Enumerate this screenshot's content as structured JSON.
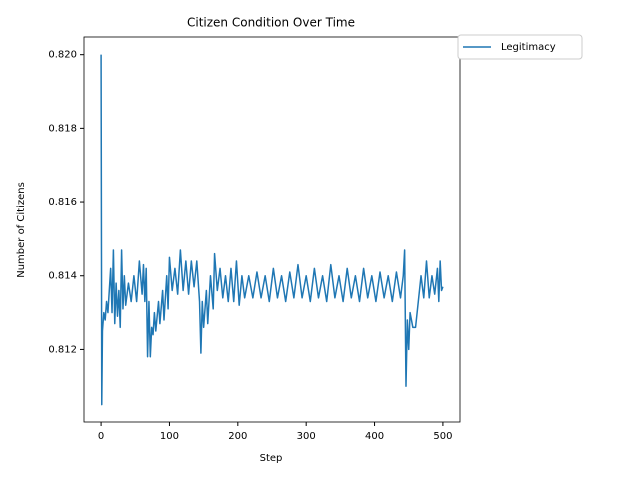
{
  "chart_data": {
    "type": "line",
    "title": "Citizen Condition Over Time",
    "x_label": "Step",
    "y_label": "Number of Citizens",
    "xlim": [
      -25,
      525
    ],
    "xticks": [
      0,
      100,
      200,
      300,
      400,
      500
    ],
    "ylim": [
      0.81003,
      0.82048
    ],
    "yticks": [
      0.812,
      0.814,
      0.816,
      0.818,
      {
        "value": 0.82,
        "label": "0.820"
      }
    ],
    "grid": false,
    "legend": "outside upper right",
    "series": [
      {
        "name": "Legitimacy",
        "color": "#1f77b4",
        "x": [
          0,
          1,
          2,
          4,
          6,
          8,
          10,
          12,
          14,
          16,
          18,
          20,
          22,
          24,
          26,
          28,
          30,
          32,
          34,
          36,
          40,
          44,
          48,
          52,
          56,
          60,
          62,
          64,
          66,
          68,
          70,
          72,
          74,
          76,
          78,
          80,
          84,
          86,
          90,
          92,
          96,
          98,
          100,
          104,
          108,
          112,
          116,
          120,
          124,
          128,
          132,
          136,
          140,
          144,
          146,
          148,
          150,
          154,
          156,
          160,
          164,
          166,
          170,
          174,
          178,
          182,
          186,
          190,
          194,
          198,
          202,
          206,
          210,
          216,
          222,
          228,
          234,
          240,
          246,
          252,
          258,
          264,
          270,
          276,
          282,
          288,
          294,
          300,
          306,
          312,
          318,
          324,
          330,
          336,
          342,
          348,
          354,
          360,
          366,
          372,
          378,
          384,
          390,
          396,
          402,
          408,
          414,
          420,
          426,
          432,
          438,
          442,
          444,
          446,
          448,
          450,
          452,
          456,
          460,
          464,
          468,
          472,
          476,
          480,
          484,
          488,
          492,
          494,
          496,
          498,
          500
        ],
        "values": [
          0.82,
          0.8105,
          0.8125,
          0.813,
          0.8128,
          0.8133,
          0.813,
          0.8136,
          0.8142,
          0.813,
          0.8147,
          0.8127,
          0.8138,
          0.8129,
          0.8136,
          0.8126,
          0.8147,
          0.8131,
          0.814,
          0.8132,
          0.8138,
          0.8133,
          0.814,
          0.8133,
          0.8144,
          0.8135,
          0.8143,
          0.8133,
          0.8142,
          0.8118,
          0.8133,
          0.8118,
          0.8126,
          0.8124,
          0.813,
          0.8125,
          0.8133,
          0.8127,
          0.8136,
          0.8128,
          0.814,
          0.8131,
          0.8145,
          0.8136,
          0.8142,
          0.8135,
          0.8147,
          0.8136,
          0.8144,
          0.8135,
          0.8144,
          0.8137,
          0.8144,
          0.8133,
          0.8119,
          0.8133,
          0.8126,
          0.8136,
          0.8127,
          0.814,
          0.8131,
          0.8146,
          0.8136,
          0.8142,
          0.8134,
          0.814,
          0.8133,
          0.8142,
          0.8133,
          0.8144,
          0.8132,
          0.814,
          0.8134,
          0.814,
          0.8134,
          0.8141,
          0.8134,
          0.814,
          0.8133,
          0.8142,
          0.8134,
          0.814,
          0.8133,
          0.8141,
          0.8134,
          0.8143,
          0.8134,
          0.814,
          0.8133,
          0.8142,
          0.8134,
          0.814,
          0.8133,
          0.8143,
          0.8134,
          0.814,
          0.8133,
          0.8142,
          0.8134,
          0.814,
          0.8133,
          0.8142,
          0.8134,
          0.814,
          0.8133,
          0.8141,
          0.8134,
          0.814,
          0.8133,
          0.8141,
          0.8134,
          0.814,
          0.8147,
          0.811,
          0.8128,
          0.812,
          0.813,
          0.8126,
          0.8126,
          0.8133,
          0.814,
          0.8134,
          0.8144,
          0.8134,
          0.814,
          0.8135,
          0.8142,
          0.8133,
          0.8144,
          0.8136,
          0.8137
        ]
      }
    ]
  }
}
